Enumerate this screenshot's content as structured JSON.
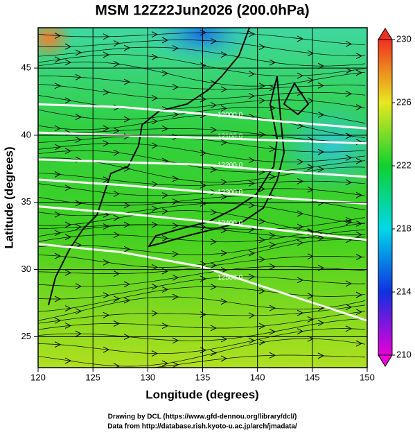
{
  "chart_data": {
    "type": "map",
    "title": "MSM 12Z22Jun2026 (200.0hPa)",
    "x_label": "Longitude (degrees)",
    "y_label": "Latitude  (degrees)",
    "footer": [
      "Drawing by DCL (https://www.gfd-dennou.org/library/dcl/)",
      "Data from http://database.rish.kyoto-u.ac.jp/arch/jmadata/"
    ],
    "xlim": [
      120,
      150
    ],
    "ylim": [
      22.7,
      48
    ],
    "xticks": [
      120,
      125,
      130,
      135,
      140,
      145,
      150
    ],
    "yticks": [
      25,
      30,
      35,
      40,
      45
    ],
    "grid": true,
    "contour_lons": [
      120,
      127.5,
      135,
      142.5,
      150
    ],
    "contours": [
      {
        "level": {
          "value": 12000,
          "label": "12000.0"
        },
        "lats": [
          42.3,
          42.1,
          41.6,
          41.0,
          40.5
        ]
      },
      {
        "level": {
          "value": 12100,
          "label": "12100.0"
        },
        "lats": [
          40.2,
          40.0,
          39.8,
          39.6,
          39.4
        ]
      },
      {
        "level": {
          "value": 12200,
          "label": "12200.0"
        },
        "lats": [
          38.2,
          38.0,
          37.8,
          37.3,
          36.9
        ]
      },
      {
        "level": {
          "value": 12300,
          "label": "12300.0"
        },
        "lats": [
          36.7,
          36.3,
          35.8,
          35.3,
          34.9
        ]
      },
      {
        "level": {
          "value": 12400,
          "label": "12400.0"
        },
        "lats": [
          34.7,
          34.2,
          33.6,
          32.9,
          32.2
        ]
      },
      {
        "level": {
          "value": 12500,
          "label": "12500.0"
        },
        "lats": [
          31.9,
          31.3,
          30.2,
          28.2,
          26.2
        ]
      }
    ],
    "colorbar": {
      "lim": [
        210,
        230
      ],
      "ticks": [
        210,
        214,
        218,
        222,
        226,
        230
      ],
      "colors": [
        "#e800d8",
        "#1030e0",
        "#00d8e8",
        "#10d030",
        "#e8e820",
        "#f03020"
      ]
    }
  }
}
